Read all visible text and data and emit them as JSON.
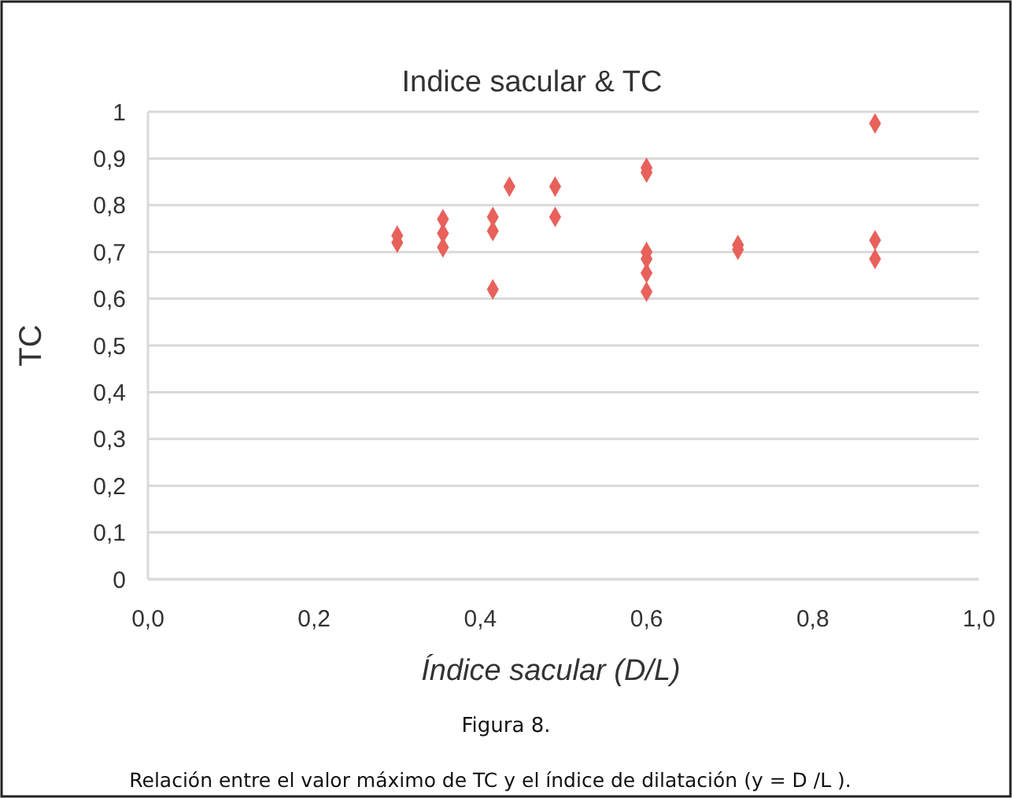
{
  "chart_data": {
    "type": "scatter",
    "title": "Indice sacular & TC",
    "xlabel": "Índice sacular (D/L)",
    "ylabel": "TC",
    "annotations": [
      "Figura 8.",
      "Relación entre el valor máximo de TC y el índice de dilatación (y = D /L )."
    ],
    "series": [
      {
        "color": "#e8615b",
        "x": [
          0.3,
          0.3,
          0.355,
          0.355,
          0.355,
          0.415,
          0.415,
          0.415,
          0.435,
          0.49,
          0.49,
          0.6,
          0.6,
          0.6,
          0.6,
          0.6,
          0.6,
          0.71,
          0.71,
          0.875,
          0.875,
          0.875
        ],
        "values": [
          0.72,
          0.735,
          0.77,
          0.74,
          0.71,
          0.775,
          0.745,
          0.62,
          0.84,
          0.84,
          0.775,
          0.88,
          0.87,
          0.7,
          0.685,
          0.655,
          0.615,
          0.715,
          0.705,
          0.975,
          0.725,
          0.685
        ]
      }
    ],
    "xlim": [
      0,
      1
    ],
    "xticks": [
      {
        "value": 0,
        "label": "0,0"
      },
      {
        "value": 0.2,
        "label": "0,2"
      },
      {
        "value": 0.4,
        "label": "0,4"
      },
      {
        "value": 0.6,
        "label": "0,6"
      },
      {
        "value": 0.8,
        "label": "0,8"
      },
      {
        "value": 1,
        "label": "1,0"
      }
    ],
    "ylim": [
      0,
      1
    ],
    "yticks": [
      0,
      {
        "value": 0.1,
        "label": "0,1"
      },
      {
        "value": 0.2,
        "label": "0,2"
      },
      {
        "value": 0.3,
        "label": "0,3"
      },
      {
        "value": 0.4,
        "label": "0,4"
      },
      {
        "value": 0.5,
        "label": "0,5"
      },
      {
        "value": 0.6,
        "label": "0,6"
      },
      {
        "value": 0.7,
        "label": "0,7"
      },
      {
        "value": 0.8,
        "label": "0,8"
      },
      {
        "value": 0.9,
        "label": "0,9"
      },
      1
    ],
    "grid": "y",
    "marker": "diamond"
  }
}
